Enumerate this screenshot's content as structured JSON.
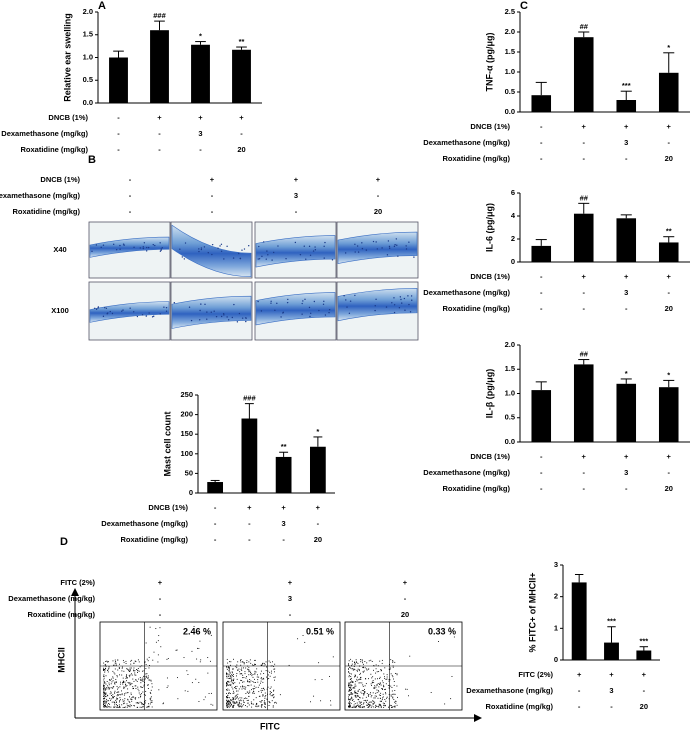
{
  "chart_data": [
    {
      "type": "bar",
      "panel": "A",
      "y_label": "Relative ear swelling",
      "color": "#000000",
      "ylim": [
        0,
        2.0
      ],
      "yticks": [
        {
          "value": 0,
          "label": "0.0"
        },
        0.5,
        {
          "value": 1,
          "label": "1.0"
        },
        1.5,
        {
          "value": 2,
          "label": "2.0"
        }
      ],
      "values": [
        1.0,
        1.6,
        1.28,
        1.17
      ],
      "errors": [
        0.14,
        0.2,
        0.07,
        0.06
      ],
      "significance": [
        null,
        "###",
        "*",
        "**"
      ],
      "conditions": [
        {
          "label": "DNCB (1%)",
          "values": [
            "-",
            "+",
            "+",
            "+"
          ]
        },
        {
          "label": "Dexamethasone (mg/kg)",
          "values": [
            "-",
            "-",
            "3",
            "-"
          ]
        },
        {
          "label": "Roxatidine (mg/kg)",
          "values": [
            "-",
            "-",
            "-",
            "20"
          ]
        }
      ]
    },
    {
      "type": "bar",
      "y_label": "Mast cell count",
      "color": "#000000",
      "ylim": [
        0,
        250
      ],
      "yticks": [
        0,
        50,
        100,
        150,
        200,
        250
      ],
      "values": [
        28,
        190,
        92,
        118
      ],
      "errors": [
        4,
        38,
        12,
        25
      ],
      "significance": [
        null,
        "###",
        "**",
        "*"
      ],
      "conditions": [
        {
          "label": "DNCB (1%)",
          "values": [
            "-",
            "+",
            "+",
            "+"
          ]
        },
        {
          "label": "Dexamethasone (mg/kg)",
          "values": [
            "-",
            "-",
            "3",
            "-"
          ]
        },
        {
          "label": "Roxatidine (mg/kg)",
          "values": [
            "-",
            "-",
            "-",
            "20"
          ]
        }
      ]
    },
    {
      "type": "bar",
      "panel": "C",
      "y_label": "TNF-α (pg/μg)",
      "color": "#000000",
      "ylim": [
        0,
        2.5
      ],
      "yticks": [
        {
          "value": 0,
          "label": "0.0"
        },
        0.5,
        {
          "value": 1,
          "label": "1.0"
        },
        1.5,
        {
          "value": 2,
          "label": "2.0"
        },
        2.5
      ],
      "values": [
        0.42,
        1.87,
        0.3,
        0.98
      ],
      "errors": [
        0.32,
        0.13,
        0.22,
        0.5
      ],
      "significance": [
        null,
        "##",
        "***",
        "*"
      ],
      "conditions": [
        {
          "label": "DNCB (1%)",
          "values": [
            "-",
            "+",
            "+",
            "+"
          ]
        },
        {
          "label": "Dexamethasone (mg/kg)",
          "values": [
            "-",
            "-",
            "3",
            "-"
          ]
        },
        {
          "label": "Roxatidine (mg/kg)",
          "values": [
            "-",
            "-",
            "-",
            "20"
          ]
        }
      ]
    },
    {
      "type": "bar",
      "y_label": "IL-6 (pg/μg)",
      "color": "#000000",
      "ylim": [
        0,
        6
      ],
      "yticks": [
        0,
        2,
        4,
        6
      ],
      "values": [
        1.4,
        4.2,
        3.8,
        1.7
      ],
      "errors": [
        0.55,
        0.9,
        0.3,
        0.5
      ],
      "significance": [
        null,
        "##",
        null,
        "**"
      ],
      "conditions": [
        {
          "label": "DNCB (1%)",
          "values": [
            "-",
            "+",
            "+",
            "+"
          ]
        },
        {
          "label": "Dexamethasone (mg/kg)",
          "values": [
            "-",
            "-",
            "3",
            "-"
          ]
        },
        {
          "label": "Roxatidine (mg/kg)",
          "values": [
            "-",
            "-",
            "-",
            "20"
          ]
        }
      ]
    },
    {
      "type": "bar",
      "y_label": "IL-β (pg/μg)",
      "color": "#000000",
      "ylim": [
        0,
        2.0
      ],
      "yticks": [
        {
          "value": 0,
          "label": "0.0"
        },
        0.5,
        {
          "value": 1,
          "label": "1.0"
        },
        1.5,
        {
          "value": 2,
          "label": "2.0"
        }
      ],
      "values": [
        1.07,
        1.6,
        1.2,
        1.13
      ],
      "errors": [
        0.17,
        0.1,
        0.1,
        0.14
      ],
      "significance": [
        null,
        "##",
        "*",
        "*"
      ],
      "conditions": [
        {
          "label": "DNCB (1%)",
          "values": [
            "-",
            "+",
            "+",
            "+"
          ]
        },
        {
          "label": "Dexamethasone (mg/kg)",
          "values": [
            "-",
            "-",
            "3",
            "-"
          ]
        },
        {
          "label": "Roxatidine (mg/kg)",
          "values": [
            "-",
            "-",
            "-",
            "20"
          ]
        }
      ]
    },
    {
      "type": "bar",
      "y_label": "% FITC+ of MHCII+",
      "color": "#000000",
      "ylim": [
        0,
        3
      ],
      "yticks": [
        0,
        1,
        2,
        3
      ],
      "values": [
        2.45,
        0.55,
        0.3
      ],
      "errors": [
        0.25,
        0.5,
        0.12
      ],
      "significance": [
        null,
        "***",
        "***"
      ],
      "conditions": [
        {
          "label": "FITC (2%)",
          "values": [
            "+",
            "+",
            "+"
          ]
        },
        {
          "label": "Dexamethasone (mg/kg)",
          "values": [
            "-",
            "3",
            "-"
          ]
        },
        {
          "label": "Roxatidine (mg/kg)",
          "values": [
            "-",
            "-",
            "20"
          ]
        }
      ]
    }
  ],
  "histology": {
    "panel": "B",
    "rows": [
      "X40",
      "X100"
    ],
    "conditions": [
      {
        "label": "DNCB (1%)",
        "values": [
          "-",
          "+",
          "+",
          "+"
        ]
      },
      {
        "label": "Dexamethasone (mg/kg)",
        "values": [
          "-",
          "-",
          "3",
          "-"
        ]
      },
      {
        "label": "Roxatidine (mg/kg)",
        "values": [
          "-",
          "-",
          "-",
          "20"
        ]
      }
    ]
  },
  "flow": {
    "panel": "D",
    "y_label": "MHCII",
    "x_label": "FITC",
    "percentages": [
      "2.46 %",
      "0.51 %",
      "0.33 %"
    ],
    "conditions": [
      {
        "label": "FITC (2%)",
        "values": [
          "+",
          "+",
          "+"
        ]
      },
      {
        "label": "Dexamethasone (mg/kg)",
        "values": [
          "-",
          "3",
          "-"
        ]
      },
      {
        "label": "Roxatidine (mg/kg)",
        "values": [
          "-",
          "-",
          "20"
        ]
      }
    ]
  }
}
